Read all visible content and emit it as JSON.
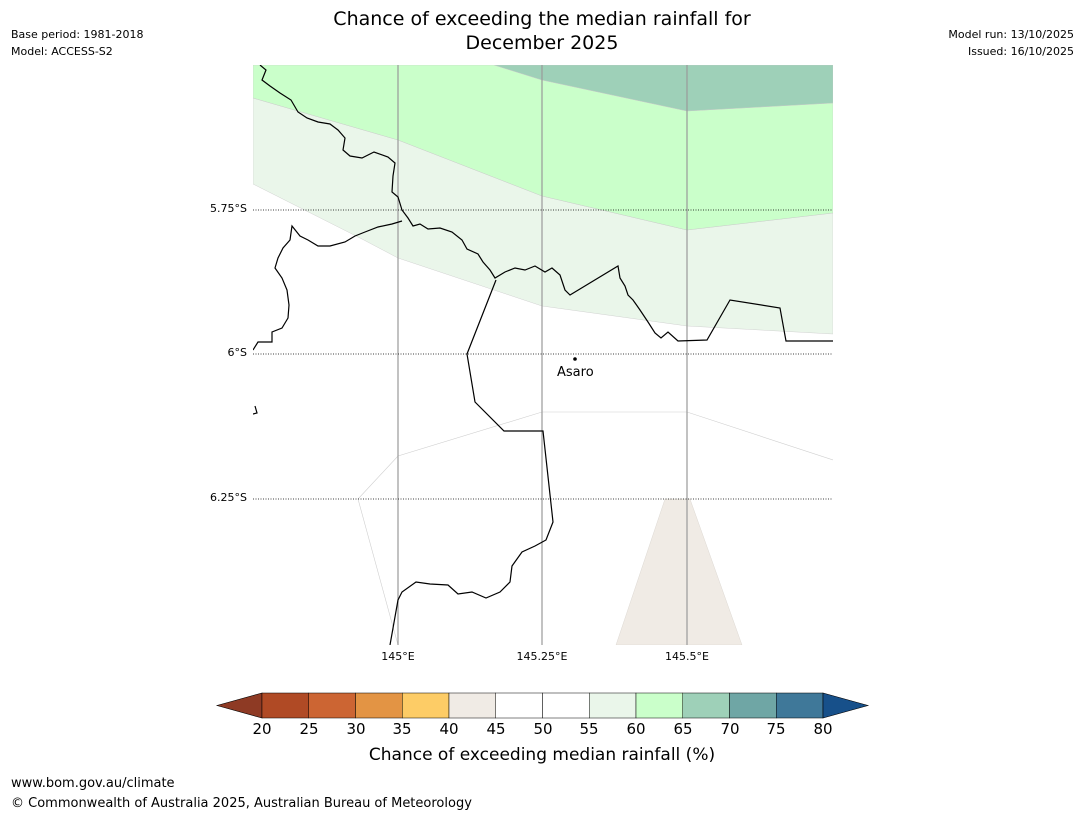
{
  "header": {
    "title_line1": "Chance of exceeding the median rainfall for",
    "title_line2": "December 2025",
    "base_period": "Base period: 1981-2018",
    "model": "Model: ACCESS-S2",
    "model_run": "Model run: 13/10/2025",
    "issued": "Issued: 16/10/2025"
  },
  "map": {
    "lat_labels": [
      "5.75°S",
      "6°S",
      "6.25°S"
    ],
    "lon_labels": [
      "145°E",
      "145.25°E",
      "145.5°E"
    ],
    "town": "Asaro"
  },
  "colorbar": {
    "ticks": [
      "20",
      "25",
      "30",
      "35",
      "40",
      "45",
      "50",
      "55",
      "60",
      "65",
      "70",
      "75",
      "80"
    ],
    "colors": [
      "#8e3a24",
      "#b04a25",
      "#cc6533",
      "#e39444",
      "#fdcc66",
      "#f0ebe5",
      "#ffffff",
      "#ffffff",
      "#eaf6ea",
      "#caffca",
      "#9ed0b8",
      "#6fa6a5",
      "#3f7899",
      "#17508a"
    ],
    "label": "Chance of exceeding median rainfall (%)"
  },
  "footer": {
    "url": "www.bom.gov.au/climate",
    "copyright": "© Commonwealth of Australia 2025, Australian Bureau of Meteorology"
  }
}
